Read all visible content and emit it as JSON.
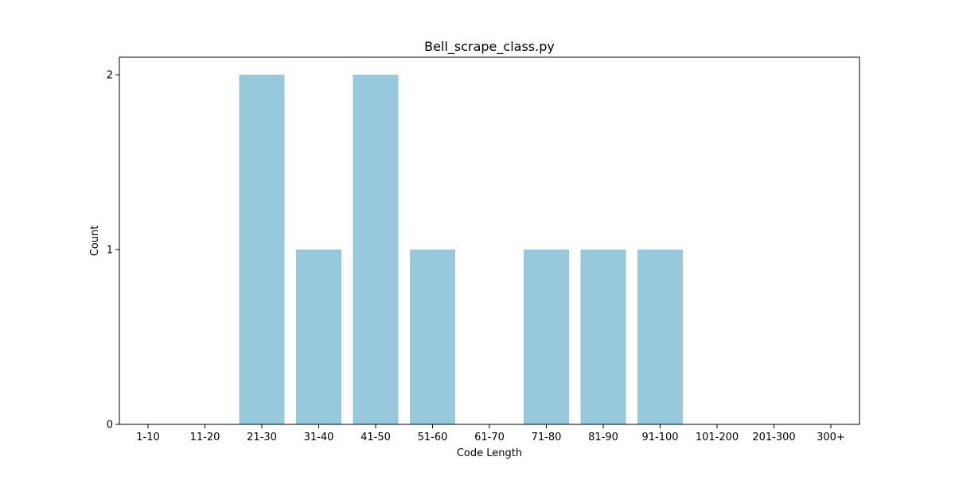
{
  "chart_data": {
    "type": "bar",
    "title": "Bell_scrape_class.py",
    "xlabel": "Code Length",
    "ylabel": "Count",
    "categories": [
      "1-10",
      "11-20",
      "21-30",
      "31-40",
      "41-50",
      "51-60",
      "61-70",
      "71-80",
      "81-90",
      "91-100",
      "101-200",
      "201-300",
      "300+"
    ],
    "values": [
      0,
      0,
      2,
      1,
      2,
      1,
      0,
      1,
      1,
      1,
      0,
      0,
      0
    ],
    "ylim": [
      0,
      2.1
    ],
    "yticks": [
      0,
      1,
      2
    ],
    "bar_color": "#96c9dc",
    "grid": false,
    "legend": false
  }
}
